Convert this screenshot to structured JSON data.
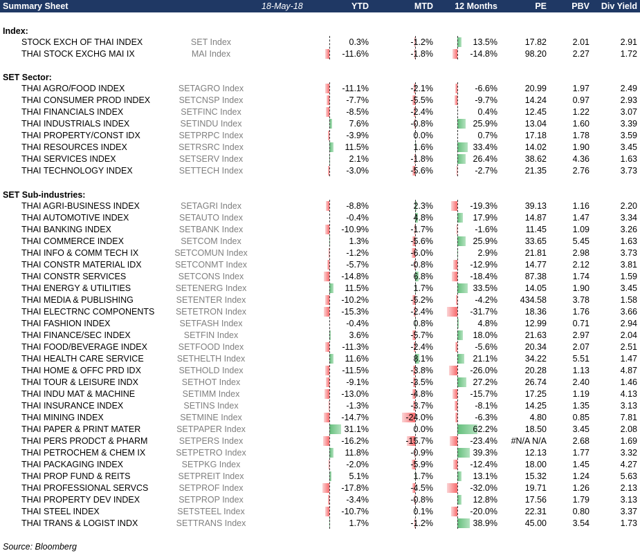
{
  "header": {
    "title": "Summary Sheet",
    "date": "18-May-18",
    "columns": [
      "YTD",
      "MTD",
      "12 Months",
      "PE",
      "PBV",
      "Div Yield"
    ]
  },
  "sections": [
    {
      "title": "Index:",
      "rows": [
        {
          "name": "STOCK EXCH OF THAI INDEX",
          "ticker": "SET Index",
          "ytd": "0.3%",
          "mtd": "-1.2%",
          "m12": "13.5%",
          "pe": "17.82",
          "pbv": "2.01",
          "dy": "2.91",
          "v": [
            0.3,
            -1.2,
            13.5
          ]
        },
        {
          "name": "THAI STOCK EXCHG MAI IX",
          "ticker": "MAI Index",
          "ytd": "-11.6%",
          "mtd": "-1.8%",
          "m12": "-14.8%",
          "pe": "98.20",
          "pbv": "2.27",
          "dy": "1.72",
          "v": [
            -11.6,
            -1.8,
            -14.8
          ]
        }
      ]
    },
    {
      "title": "SET Sector:",
      "rows": [
        {
          "name": "THAI AGRO/FOOD INDEX",
          "ticker": "SETAGRO Index",
          "ytd": "-11.1%",
          "mtd": "-2.1%",
          "m12": "-6.6%",
          "pe": "20.99",
          "pbv": "1.97",
          "dy": "2.49",
          "v": [
            -11.1,
            -2.1,
            -6.6
          ]
        },
        {
          "name": "THAI CONSUMER PROD INDEX",
          "ticker": "SETCNSP Index",
          "ytd": "-7.7%",
          "mtd": "-5.5%",
          "m12": "-9.7%",
          "pe": "14.24",
          "pbv": "0.97",
          "dy": "2.93",
          "v": [
            -7.7,
            -5.5,
            -9.7
          ]
        },
        {
          "name": "THAI FINANCIALS INDEX",
          "ticker": "SETFINC Index",
          "ytd": "-8.5%",
          "mtd": "-2.4%",
          "m12": "0.4%",
          "pe": "12.45",
          "pbv": "1.22",
          "dy": "3.07",
          "v": [
            -8.5,
            -2.4,
            0.4
          ]
        },
        {
          "name": "THAI INDUSTRIALS INDEX",
          "ticker": "SETINDU Index",
          "ytd": "7.6%",
          "mtd": "-0.8%",
          "m12": "25.9%",
          "pe": "13.04",
          "pbv": "1.60",
          "dy": "3.39",
          "v": [
            7.6,
            -0.8,
            25.9
          ]
        },
        {
          "name": "THAI PROPERTY/CONST IDX",
          "ticker": "SETPRPC Index",
          "ytd": "-3.9%",
          "mtd": "0.0%",
          "m12": "0.7%",
          "pe": "17.18",
          "pbv": "1.78",
          "dy": "3.59",
          "v": [
            -3.9,
            0.0,
            0.7
          ]
        },
        {
          "name": "THAI RESOURCES INDEX",
          "ticker": "SETRSRC Index",
          "ytd": "11.5%",
          "mtd": "1.6%",
          "m12": "33.4%",
          "pe": "14.02",
          "pbv": "1.90",
          "dy": "3.45",
          "v": [
            11.5,
            1.6,
            33.4
          ]
        },
        {
          "name": "THAI SERVICES INDEX",
          "ticker": "SETSERV Index",
          "ytd": "2.1%",
          "mtd": "-1.8%",
          "m12": "26.4%",
          "pe": "38.62",
          "pbv": "4.36",
          "dy": "1.63",
          "v": [
            2.1,
            -1.8,
            26.4
          ]
        },
        {
          "name": "THAI TECHNOLOGY INDEX",
          "ticker": "SETTECH Index",
          "ytd": "-3.0%",
          "mtd": "-5.6%",
          "m12": "-2.7%",
          "pe": "21.35",
          "pbv": "2.76",
          "dy": "3.73",
          "v": [
            -3.0,
            -5.6,
            -2.7
          ]
        }
      ]
    },
    {
      "title": "SET Sub-industries:",
      "rows": [
        {
          "name": "THAI AGRI-BUSINESS INDEX",
          "ticker": "SETAGRI Index",
          "ytd": "-8.8%",
          "mtd": "2.3%",
          "m12": "-19.3%",
          "pe": "39.13",
          "pbv": "1.16",
          "dy": "2.20",
          "v": [
            -8.8,
            2.3,
            -19.3
          ]
        },
        {
          "name": "THAI AUTOMOTIVE INDEX",
          "ticker": "SETAUTO Index",
          "ytd": "-0.4%",
          "mtd": "4.8%",
          "m12": "17.9%",
          "pe": "14.87",
          "pbv": "1.47",
          "dy": "3.34",
          "v": [
            -0.4,
            4.8,
            17.9
          ]
        },
        {
          "name": "THAI BANKING INDEX",
          "ticker": "SETBANK Index",
          "ytd": "-10.9%",
          "mtd": "-1.7%",
          "m12": "-1.6%",
          "pe": "11.45",
          "pbv": "1.09",
          "dy": "3.26",
          "v": [
            -10.9,
            -1.7,
            -1.6
          ]
        },
        {
          "name": "THAI COMMERCE INDEX",
          "ticker": "SETCOM Index",
          "ytd": "1.3%",
          "mtd": "-5.6%",
          "m12": "25.9%",
          "pe": "33.65",
          "pbv": "5.45",
          "dy": "1.63",
          "v": [
            1.3,
            -5.6,
            25.9
          ]
        },
        {
          "name": "THAI INFO & COMM TECH IX",
          "ticker": "SETCOMUN Index",
          "ytd": "-1.2%",
          "mtd": "-6.0%",
          "m12": "2.9%",
          "pe": "21.81",
          "pbv": "2.98",
          "dy": "3.73",
          "v": [
            -1.2,
            -6.0,
            2.9
          ]
        },
        {
          "name": "THAI CONSTR MATERIAL IDX",
          "ticker": "SETCONMT Index",
          "ytd": "-5.7%",
          "mtd": "-0.8%",
          "m12": "-12.9%",
          "pe": "14.77",
          "pbv": "2.12",
          "dy": "3.81",
          "v": [
            -5.7,
            -0.8,
            -12.9
          ]
        },
        {
          "name": "THAI CONSTR SERVICES",
          "ticker": "SETCONS Index",
          "ytd": "-14.8%",
          "mtd": "6.8%",
          "m12": "-18.4%",
          "pe": "87.38",
          "pbv": "1.74",
          "dy": "1.59",
          "v": [
            -14.8,
            6.8,
            -18.4
          ]
        },
        {
          "name": "THAI ENERGY & UTILITIES",
          "ticker": "SETENERG Index",
          "ytd": "11.5%",
          "mtd": "1.7%",
          "m12": "33.5%",
          "pe": "14.05",
          "pbv": "1.90",
          "dy": "3.45",
          "v": [
            11.5,
            1.7,
            33.5
          ]
        },
        {
          "name": "THAI MEDIA & PUBLISHING",
          "ticker": "SETENTER Index",
          "ytd": "-10.2%",
          "mtd": "-5.2%",
          "m12": "-4.2%",
          "pe": "434.58",
          "pbv": "3.78",
          "dy": "1.58",
          "v": [
            -10.2,
            -5.2,
            -4.2
          ]
        },
        {
          "name": "THAI ELECTRNC COMPONENTS",
          "ticker": "SETETRON Index",
          "ytd": "-15.3%",
          "mtd": "-2.4%",
          "m12": "-31.7%",
          "pe": "18.36",
          "pbv": "1.76",
          "dy": "3.66",
          "v": [
            -15.3,
            -2.4,
            -31.7
          ]
        },
        {
          "name": "THAI FASHION INDEX",
          "ticker": "SETFASH Index",
          "ytd": "-0.4%",
          "mtd": "0.8%",
          "m12": "4.8%",
          "pe": "12.99",
          "pbv": "0.71",
          "dy": "2.94",
          "v": [
            -0.4,
            0.8,
            4.8
          ]
        },
        {
          "name": "THAI FINANCE/SEC INDEX",
          "ticker": "SETFIN Index",
          "ytd": "3.6%",
          "mtd": "-5.7%",
          "m12": "18.0%",
          "pe": "21.63",
          "pbv": "2.97",
          "dy": "2.04",
          "v": [
            3.6,
            -5.7,
            18.0
          ]
        },
        {
          "name": "THAI FOOD/BEVERAGE INDEX",
          "ticker": "SETFOOD Index",
          "ytd": "-11.3%",
          "mtd": "-2.4%",
          "m12": "-5.6%",
          "pe": "20.34",
          "pbv": "2.07",
          "dy": "2.51",
          "v": [
            -11.3,
            -2.4,
            -5.6
          ]
        },
        {
          "name": "THAI HEALTH CARE SERVICE",
          "ticker": "SETHELTH Index",
          "ytd": "11.6%",
          "mtd": "8.1%",
          "m12": "21.1%",
          "pe": "34.22",
          "pbv": "5.51",
          "dy": "1.47",
          "v": [
            11.6,
            8.1,
            21.1
          ]
        },
        {
          "name": "THAI HOME & OFFC PRD IDX",
          "ticker": "SETHOLD Index",
          "ytd": "-11.5%",
          "mtd": "-3.8%",
          "m12": "-26.0%",
          "pe": "20.28",
          "pbv": "1.13",
          "dy": "4.87",
          "v": [
            -11.5,
            -3.8,
            -26.0
          ]
        },
        {
          "name": "THAI TOUR & LEISURE INDX",
          "ticker": "SETHOT Index",
          "ytd": "-9.1%",
          "mtd": "-3.5%",
          "m12": "27.2%",
          "pe": "26.74",
          "pbv": "2.40",
          "dy": "1.46",
          "v": [
            -9.1,
            -3.5,
            27.2
          ]
        },
        {
          "name": "THAI INDU MAT & MACHINE",
          "ticker": "SETIMM Index",
          "ytd": "-13.0%",
          "mtd": "-4.8%",
          "m12": "-15.7%",
          "pe": "17.25",
          "pbv": "1.19",
          "dy": "4.13",
          "v": [
            -13.0,
            -4.8,
            -15.7
          ]
        },
        {
          "name": "THAI INSURANCE INDEX",
          "ticker": "SETINS Index",
          "ytd": "-1.3%",
          "mtd": "-3.7%",
          "m12": "-8.1%",
          "pe": "14.25",
          "pbv": "1.35",
          "dy": "3.13",
          "v": [
            -1.3,
            -3.7,
            -8.1
          ]
        },
        {
          "name": "THAI MINING INDEX",
          "ticker": "SETMINE Index",
          "ytd": "-14.7%",
          "mtd": "-24.0%",
          "m12": "-6.3%",
          "pe": "4.80",
          "pbv": "0.85",
          "dy": "7.81",
          "v": [
            -14.7,
            -24.0,
            -6.3
          ]
        },
        {
          "name": "THAI PAPER & PRINT MATER",
          "ticker": "SETPAPER Index",
          "ytd": "31.1%",
          "mtd": "0.0%",
          "m12": "62.2%",
          "pe": "18.50",
          "pbv": "3.45",
          "dy": "2.08",
          "v": [
            31.1,
            0.0,
            62.2
          ]
        },
        {
          "name": "THAI PERS PRODCT & PHARM",
          "ticker": "SETPERS Index",
          "ytd": "-16.2%",
          "mtd": "-15.7%",
          "m12": "-23.4%",
          "pe": "#N/A N/A",
          "pbv": "2.68",
          "dy": "1.69",
          "v": [
            -16.2,
            -15.7,
            -23.4
          ]
        },
        {
          "name": "THAI PETROCHEM & CHEM IX",
          "ticker": "SETPETRO Index",
          "ytd": "11.8%",
          "mtd": "-0.9%",
          "m12": "39.3%",
          "pe": "12.13",
          "pbv": "1.77",
          "dy": "3.32",
          "v": [
            11.8,
            -0.9,
            39.3
          ]
        },
        {
          "name": "THAI PACKAGING INDEX",
          "ticker": "SETPKG Index",
          "ytd": "-2.0%",
          "mtd": "-5.9%",
          "m12": "-12.4%",
          "pe": "18.00",
          "pbv": "1.45",
          "dy": "4.27",
          "v": [
            -2.0,
            -5.9,
            -12.4
          ]
        },
        {
          "name": "THAI PROP FUND & REITS",
          "ticker": "SETPREIT Index",
          "ytd": "5.1%",
          "mtd": "1.7%",
          "m12": "13.1%",
          "pe": "15.32",
          "pbv": "1.24",
          "dy": "5.63",
          "v": [
            5.1,
            1.7,
            13.1
          ]
        },
        {
          "name": "THAI PROFESSIONAL SERVCS",
          "ticker": "SETPROF Index",
          "ytd": "-17.8%",
          "mtd": "-4.5%",
          "m12": "-32.0%",
          "pe": "19.71",
          "pbv": "1.26",
          "dy": "2.13",
          "v": [
            -17.8,
            -4.5,
            -32.0
          ]
        },
        {
          "name": "THAI PROPERTY DEV INDEX",
          "ticker": "SETPROP Index",
          "ytd": "-3.4%",
          "mtd": "-0.8%",
          "m12": "12.8%",
          "pe": "17.56",
          "pbv": "1.79",
          "dy": "3.13",
          "v": [
            -3.4,
            -0.8,
            12.8
          ]
        },
        {
          "name": "THAI STEEL INDEX",
          "ticker": "SETSTEEL Index",
          "ytd": "-10.7%",
          "mtd": "0.1%",
          "m12": "-20.0%",
          "pe": "22.31",
          "pbv": "0.80",
          "dy": "3.37",
          "v": [
            -10.7,
            0.1,
            -20.0
          ]
        },
        {
          "name": "THAI TRANS & LOGIST INDX",
          "ticker": "SETTRANS Index",
          "ytd": "1.7%",
          "mtd": "-1.2%",
          "m12": "38.9%",
          "pe": "45.00",
          "pbv": "3.54",
          "dy": "1.73",
          "v": [
            1.7,
            -1.2,
            38.9
          ]
        }
      ]
    }
  ],
  "footer": "Source: Bloomberg"
}
